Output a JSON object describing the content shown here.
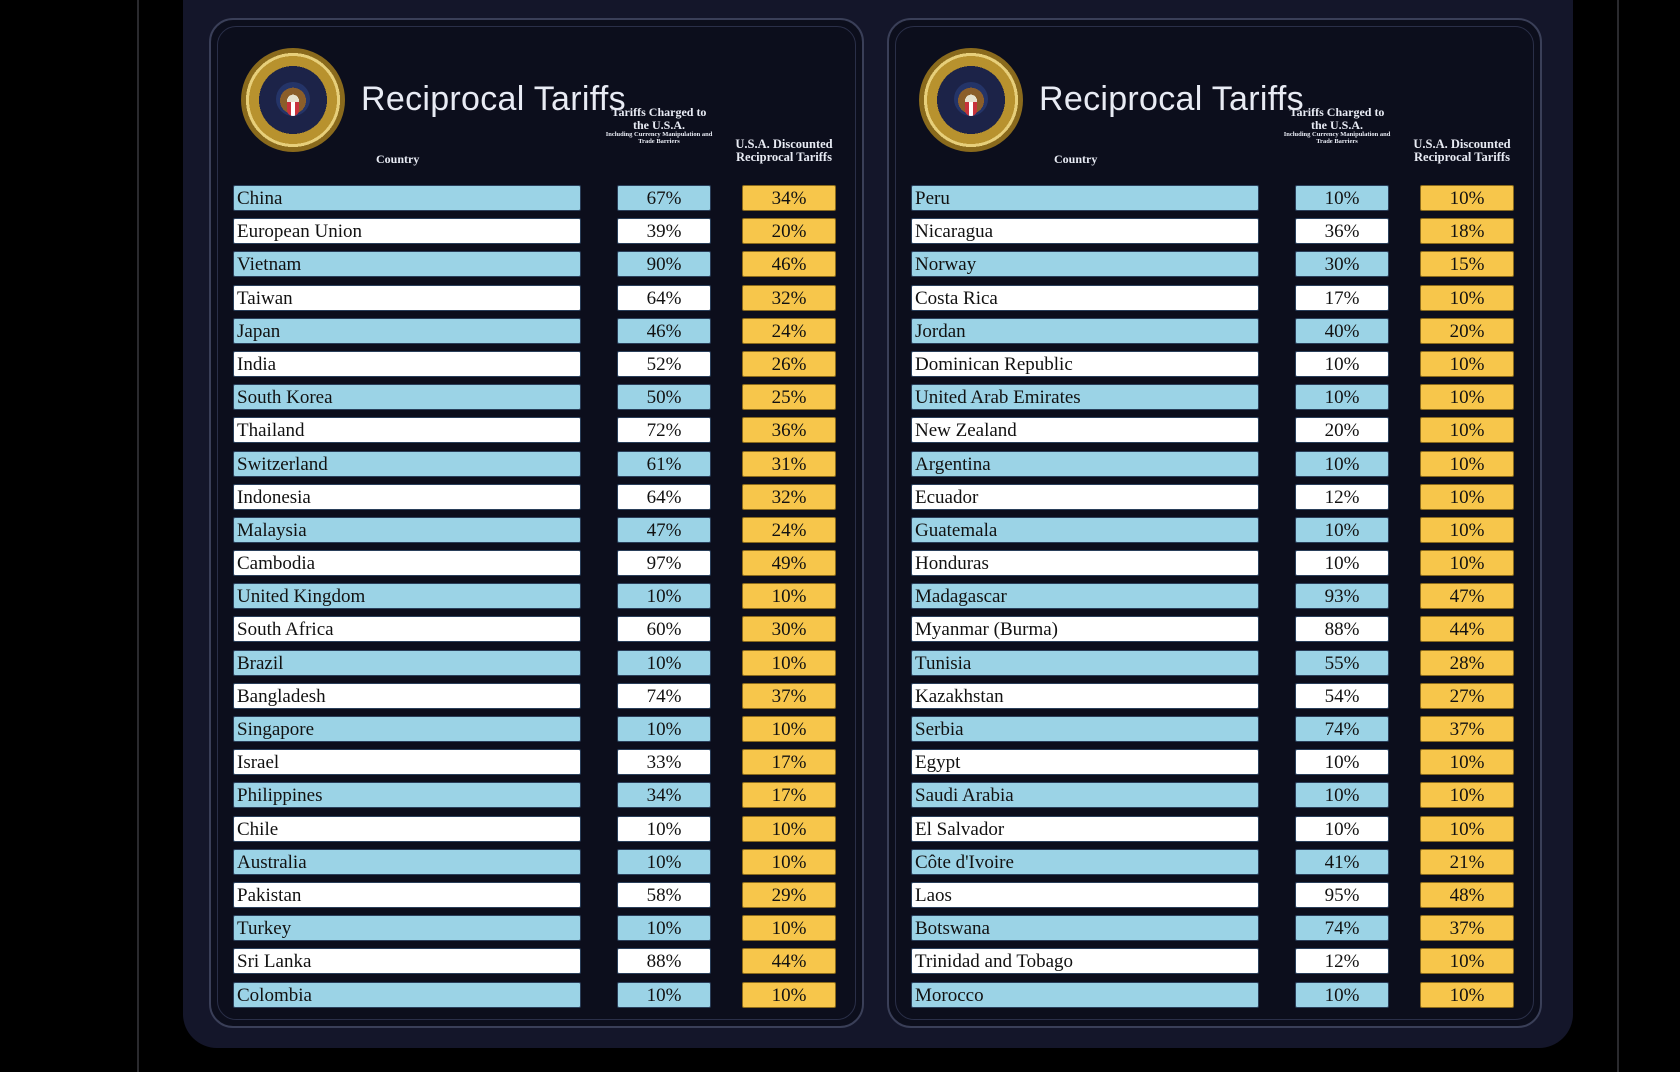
{
  "panels": [
    {
      "title": "Reciprocal Tariffs",
      "headers": {
        "country": "Country",
        "charged_main": "Tariffs Charged to the U.S.A.",
        "charged_sub": "Including Currency Manipulation and Trade Barriers",
        "discounted": "U.S.A. Discounted Reciprocal Tariffs"
      },
      "rows": [
        {
          "country": "China",
          "charged": "67%",
          "discounted": "34%"
        },
        {
          "country": "European Union",
          "charged": "39%",
          "discounted": "20%"
        },
        {
          "country": "Vietnam",
          "charged": "90%",
          "discounted": "46%"
        },
        {
          "country": "Taiwan",
          "charged": "64%",
          "discounted": "32%"
        },
        {
          "country": "Japan",
          "charged": "46%",
          "discounted": "24%"
        },
        {
          "country": "India",
          "charged": "52%",
          "discounted": "26%"
        },
        {
          "country": "South Korea",
          "charged": "50%",
          "discounted": "25%"
        },
        {
          "country": "Thailand",
          "charged": "72%",
          "discounted": "36%"
        },
        {
          "country": "Switzerland",
          "charged": "61%",
          "discounted": "31%"
        },
        {
          "country": "Indonesia",
          "charged": "64%",
          "discounted": "32%"
        },
        {
          "country": "Malaysia",
          "charged": "47%",
          "discounted": "24%"
        },
        {
          "country": "Cambodia",
          "charged": "97%",
          "discounted": "49%"
        },
        {
          "country": "United Kingdom",
          "charged": "10%",
          "discounted": "10%"
        },
        {
          "country": "South Africa",
          "charged": "60%",
          "discounted": "30%"
        },
        {
          "country": "Brazil",
          "charged": "10%",
          "discounted": "10%"
        },
        {
          "country": "Bangladesh",
          "charged": "74%",
          "discounted": "37%"
        },
        {
          "country": "Singapore",
          "charged": "10%",
          "discounted": "10%"
        },
        {
          "country": "Israel",
          "charged": "33%",
          "discounted": "17%"
        },
        {
          "country": "Philippines",
          "charged": "34%",
          "discounted": "17%"
        },
        {
          "country": "Chile",
          "charged": "10%",
          "discounted": "10%"
        },
        {
          "country": "Australia",
          "charged": "10%",
          "discounted": "10%"
        },
        {
          "country": "Pakistan",
          "charged": "58%",
          "discounted": "29%"
        },
        {
          "country": "Turkey",
          "charged": "10%",
          "discounted": "10%"
        },
        {
          "country": "Sri Lanka",
          "charged": "88%",
          "discounted": "44%"
        },
        {
          "country": "Colombia",
          "charged": "10%",
          "discounted": "10%"
        }
      ]
    },
    {
      "title": "Reciprocal Tariffs",
      "headers": {
        "country": "Country",
        "charged_main": "Tariffs Charged to the U.S.A.",
        "charged_sub": "Including Currency Manipulation and Trade Barriers",
        "discounted": "U.S.A. Discounted Reciprocal Tariffs"
      },
      "rows": [
        {
          "country": "Peru",
          "charged": "10%",
          "discounted": "10%"
        },
        {
          "country": "Nicaragua",
          "charged": "36%",
          "discounted": "18%"
        },
        {
          "country": "Norway",
          "charged": "30%",
          "discounted": "15%"
        },
        {
          "country": "Costa Rica",
          "charged": "17%",
          "discounted": "10%"
        },
        {
          "country": "Jordan",
          "charged": "40%",
          "discounted": "20%"
        },
        {
          "country": "Dominican Republic",
          "charged": "10%",
          "discounted": "10%"
        },
        {
          "country": "United Arab Emirates",
          "charged": "10%",
          "discounted": "10%"
        },
        {
          "country": "New Zealand",
          "charged": "20%",
          "discounted": "10%"
        },
        {
          "country": "Argentina",
          "charged": "10%",
          "discounted": "10%"
        },
        {
          "country": "Ecuador",
          "charged": "12%",
          "discounted": "10%"
        },
        {
          "country": "Guatemala",
          "charged": "10%",
          "discounted": "10%"
        },
        {
          "country": "Honduras",
          "charged": "10%",
          "discounted": "10%"
        },
        {
          "country": "Madagascar",
          "charged": "93%",
          "discounted": "47%"
        },
        {
          "country": "Myanmar (Burma)",
          "charged": "88%",
          "discounted": "44%"
        },
        {
          "country": "Tunisia",
          "charged": "55%",
          "discounted": "28%"
        },
        {
          "country": "Kazakhstan",
          "charged": "54%",
          "discounted": "27%"
        },
        {
          "country": "Serbia",
          "charged": "74%",
          "discounted": "37%"
        },
        {
          "country": "Egypt",
          "charged": "10%",
          "discounted": "10%"
        },
        {
          "country": "Saudi Arabia",
          "charged": "10%",
          "discounted": "10%"
        },
        {
          "country": "El Salvador",
          "charged": "10%",
          "discounted": "10%"
        },
        {
          "country": "Côte d'Ivoire",
          "charged": "41%",
          "discounted": "21%"
        },
        {
          "country": "Laos",
          "charged": "95%",
          "discounted": "48%"
        },
        {
          "country": "Botswana",
          "charged": "74%",
          "discounted": "37%"
        },
        {
          "country": "Trinidad and Tobago",
          "charged": "12%",
          "discounted": "10%"
        },
        {
          "country": "Morocco",
          "charged": "10%",
          "discounted": "10%"
        }
      ]
    }
  ]
}
